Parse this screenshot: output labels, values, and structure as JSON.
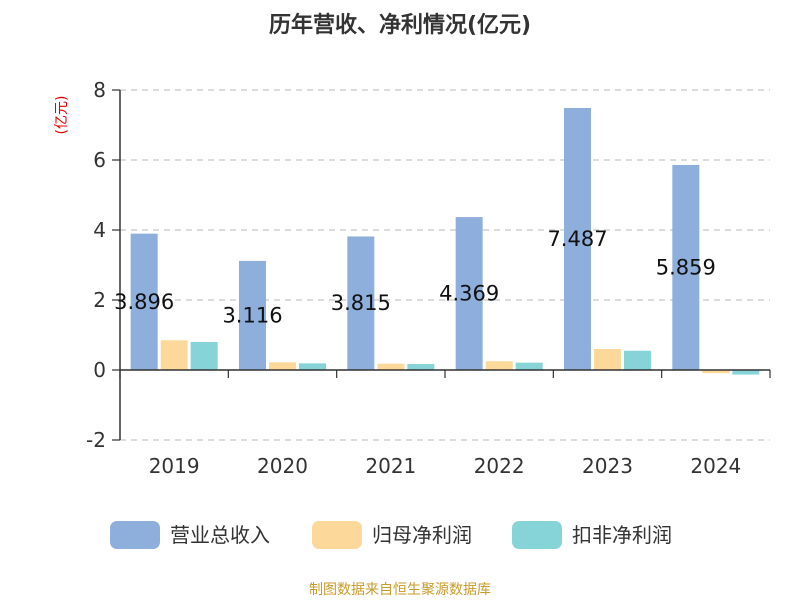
{
  "chart_data": {
    "type": "bar",
    "title": "历年营收、净利情况(亿元)",
    "ylabel": "(亿元)",
    "categories": [
      "2019",
      "2020",
      "2021",
      "2022",
      "2023",
      "2024"
    ],
    "series": [
      {
        "name": "营业总收入",
        "color": "#8eaedb",
        "values": [
          3.896,
          3.116,
          3.815,
          4.369,
          7.487,
          5.859
        ]
      },
      {
        "name": "归母净利润",
        "color": "#fdd89b",
        "values": [
          0.85,
          0.22,
          0.18,
          0.25,
          0.6,
          -0.09
        ]
      },
      {
        "name": "扣非净利润",
        "color": "#86d4d7",
        "values": [
          0.8,
          0.19,
          0.17,
          0.21,
          0.55,
          -0.13
        ]
      }
    ],
    "data_labels": [
      "3.896",
      "3.116",
      "3.815",
      "4.369",
      "7.487",
      "5.859"
    ],
    "ylim": [
      -2,
      8
    ],
    "yticks": [
      "-2",
      "0",
      "2",
      "4",
      "6",
      "8"
    ],
    "grid": true,
    "legend_position": "bottom"
  },
  "footer": {
    "source": "制图数据来自恒生聚源数据库"
  }
}
